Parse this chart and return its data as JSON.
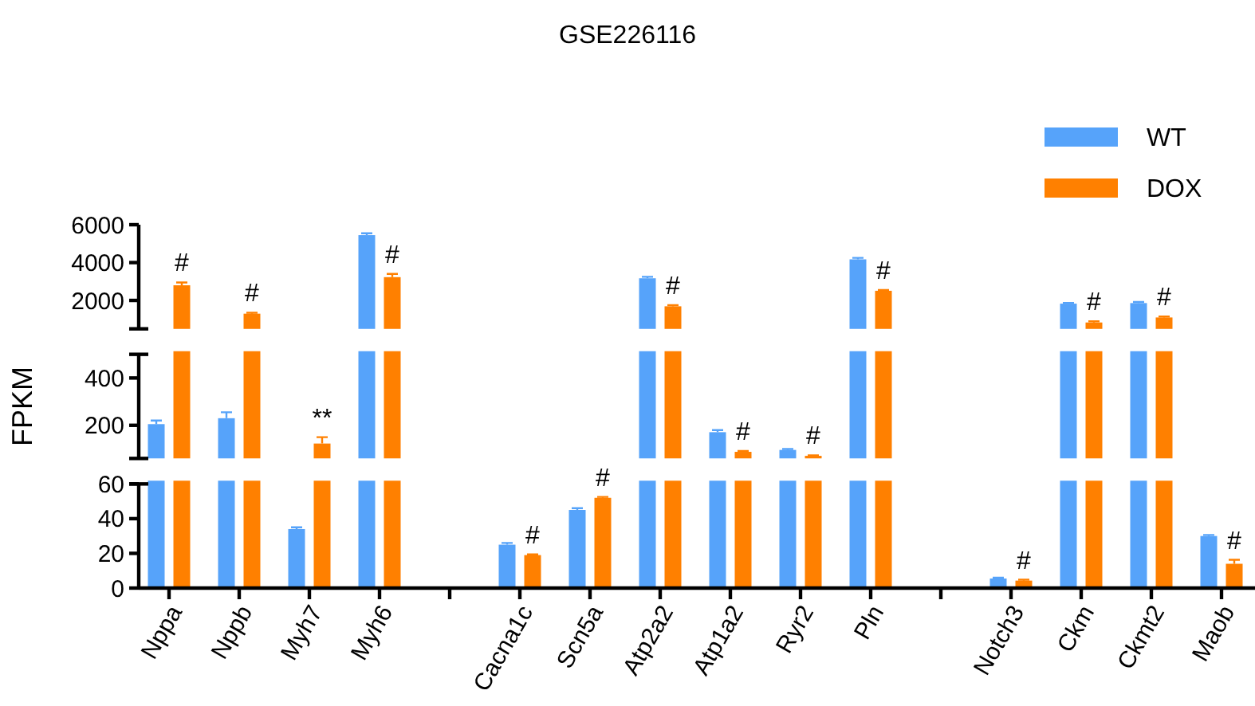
{
  "chart_data": [
    {
      "type": "bar",
      "title": "GSE226116",
      "legend": "top right",
      "tick_labels": "y",
      "categories": [
        "Nppa",
        "Nppb",
        "Myh7",
        "Myh6",
        null,
        "Cacna1c",
        "Scn5a",
        "Atp2a2",
        "Atp1a2",
        "Ryr2",
        "Pln",
        null,
        "Notch3",
        "Ckm",
        "Ckmt2",
        "Maob"
      ],
      "series": [
        {
          "name": "WT",
          "color": "#56a3fa",
          "values": [
            null,
            null,
            null,
            5450,
            null,
            null,
            null,
            3170,
            null,
            null,
            4170,
            null,
            null,
            1830,
            1860,
            null
          ],
          "errors": [
            null,
            null,
            null,
            100,
            null,
            null,
            null,
            80,
            null,
            null,
            80,
            null,
            null,
            40,
            60,
            null
          ]
        },
        {
          "name": "DOX",
          "color": "#ff8000",
          "values": [
            2800,
            1300,
            null,
            3230,
            null,
            null,
            null,
            1690,
            null,
            null,
            2510,
            null,
            null,
            835,
            1100,
            null
          ],
          "errors": [
            150,
            50,
            null,
            170,
            null,
            null,
            null,
            60,
            null,
            null,
            40,
            null,
            null,
            60,
            50,
            null
          ]
        }
      ],
      "ylim": [
        500,
        6000
      ],
      "yticks": [
        2000,
        4000,
        6000
      ],
      "annotations": [
        {
          "text": "#",
          "x": "Nppa",
          "y": 2800
        },
        {
          "text": "#",
          "x": "Nppb",
          "y": 1300
        },
        {
          "text": "#",
          "x": "Myh6",
          "y": 3230
        },
        {
          "text": "#",
          "x": "Atp2a2",
          "y": 1690
        },
        {
          "text": "#",
          "x": "Pln",
          "y": 2510
        },
        {
          "text": "#",
          "x": "Ckm",
          "y": 835
        },
        {
          "text": "#",
          "x": "Ckmt2",
          "y": 1100
        }
      ]
    },
    {
      "type": "bar",
      "ylabel": "FPKM",
      "tick_labels": "y",
      "categories": [
        "Nppa",
        "Nppb",
        "Myh7",
        "Myh6",
        null,
        "Cacna1c",
        "Scn5a",
        "Atp2a2",
        "Atp1a2",
        "Ryr2",
        "Pln",
        null,
        "Notch3",
        "Ckm",
        "Ckmt2",
        "Maob"
      ],
      "series": [
        {
          "color": "#56a3fa",
          "values": [
            205,
            230,
            null,
            null,
            null,
            null,
            null,
            null,
            171,
            96,
            null,
            null,
            null,
            null,
            null,
            null
          ],
          "errors": [
            15,
            25,
            null,
            null,
            null,
            null,
            null,
            null,
            9,
            4,
            null,
            null,
            null,
            null,
            null,
            null
          ]
        },
        {
          "color": "#ff8000",
          "values": [
            null,
            null,
            123,
            null,
            null,
            null,
            null,
            null,
            88,
            71,
            null,
            null,
            null,
            null,
            null,
            null
          ],
          "errors": [
            null,
            null,
            27,
            null,
            null,
            null,
            null,
            null,
            4,
            2,
            null,
            null,
            null,
            null,
            null,
            null
          ]
        }
      ],
      "ylim": [
        60,
        500
      ],
      "yticks": [
        200,
        400
      ],
      "annotations": [
        {
          "text": "**",
          "x": "Myh7",
          "y": 123
        },
        {
          "text": "#",
          "x": "Atp1a2",
          "y": 88
        },
        {
          "text": "#",
          "x": "Ryr2",
          "y": 71
        }
      ]
    },
    {
      "type": "bar",
      "categories": [
        "Nppa",
        "Nppb",
        "Myh7",
        "Myh6",
        null,
        "Cacna1c",
        "Scn5a",
        "Atp2a2",
        "Atp1a2",
        "Ryr2",
        "Pln",
        null,
        "Notch3",
        "Ckm",
        "Ckmt2",
        "Maob"
      ],
      "series": [
        {
          "color": "#56a3fa",
          "values": [
            null,
            null,
            34,
            null,
            null,
            25,
            45,
            null,
            null,
            null,
            null,
            null,
            5.5,
            null,
            null,
            30
          ],
          "errors": [
            null,
            null,
            1,
            null,
            null,
            1,
            1,
            null,
            null,
            null,
            null,
            null,
            0.5,
            null,
            null,
            0.6
          ]
        },
        {
          "color": "#ff8000",
          "values": [
            null,
            null,
            null,
            null,
            null,
            19,
            52,
            null,
            null,
            null,
            null,
            null,
            4.3,
            null,
            null,
            14
          ],
          "errors": [
            null,
            null,
            null,
            null,
            null,
            0.4,
            0.5,
            null,
            null,
            null,
            null,
            null,
            0.5,
            null,
            null,
            2.3
          ]
        }
      ],
      "ylim": [
        0,
        60
      ],
      "yticks": [
        0,
        20,
        40,
        60
      ],
      "annotations": [
        {
          "text": "#",
          "x": "Cacna1c",
          "y": 19
        },
        {
          "text": "#",
          "x": "Scn5a",
          "y": 52
        },
        {
          "text": "#",
          "x": "Notch3",
          "y": 4.3
        },
        {
          "text": "#",
          "x": "Maob",
          "y": 14
        }
      ]
    }
  ]
}
